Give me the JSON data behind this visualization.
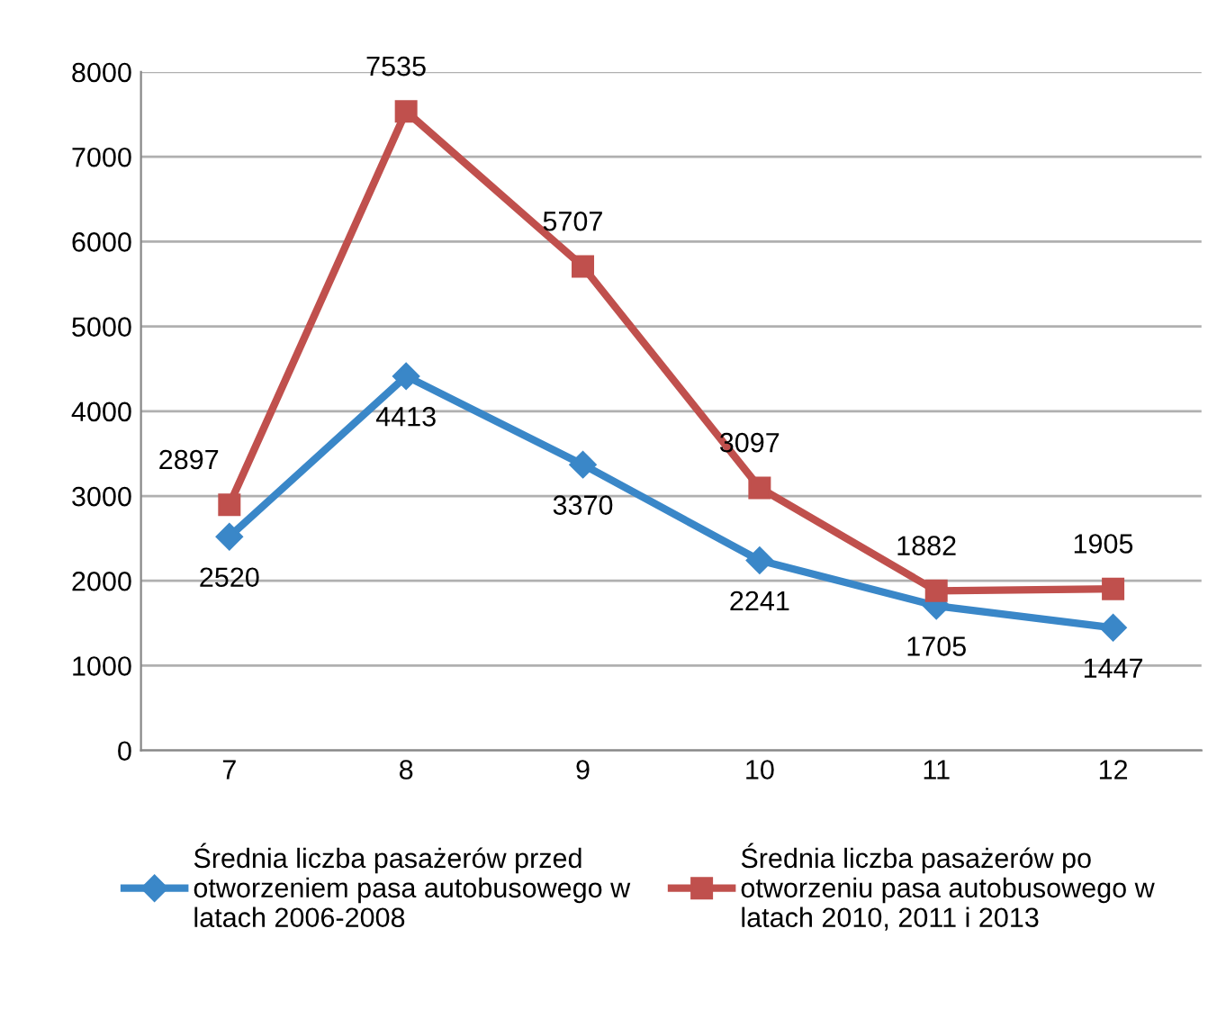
{
  "chart_data": {
    "type": "line",
    "categories": [
      "7",
      "8",
      "9",
      "10",
      "11",
      "12"
    ],
    "series": [
      {
        "name": "Średnia liczba pasażerów przed\notworzeniem pasa autobusowego w\nlatach 2006-2008",
        "color": "#3a87c8",
        "marker": "diamond",
        "values": [
          2520,
          4413,
          3370,
          2241,
          1705,
          1447
        ]
      },
      {
        "name": "Średnia liczba pasażerów po\notworzeniu pasa autobusowego w\nlatach 2010, 2011 i 2013",
        "color": "#c0504d",
        "marker": "square",
        "values": [
          2897,
          7535,
          5707,
          3097,
          1882,
          1905
        ]
      }
    ],
    "ylim": [
      0,
      8000
    ],
    "yticks": [
      0,
      1000,
      2000,
      3000,
      4000,
      5000,
      6000,
      7000,
      8000
    ],
    "grid": "y",
    "legend": "bottom",
    "data_labels": true,
    "line_style": "solid"
  }
}
